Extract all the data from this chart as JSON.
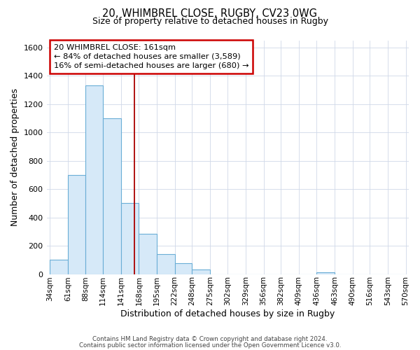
{
  "title_line1": "20, WHIMBREL CLOSE, RUGBY, CV23 0WG",
  "title_line2": "Size of property relative to detached houses in Rugby",
  "xlabel": "Distribution of detached houses by size in Rugby",
  "ylabel": "Number of detached properties",
  "bin_edges": [
    34,
    61,
    88,
    114,
    141,
    168,
    195,
    222,
    248,
    275,
    302,
    329,
    356,
    382,
    409,
    436,
    463,
    490,
    516,
    543,
    570
  ],
  "bar_heights": [
    100,
    700,
    1330,
    1100,
    500,
    285,
    140,
    75,
    30,
    0,
    0,
    0,
    0,
    0,
    0,
    15,
    0,
    0,
    0,
    0
  ],
  "tick_labels": [
    "34sqm",
    "61sqm",
    "88sqm",
    "114sqm",
    "141sqm",
    "168sqm",
    "195sqm",
    "222sqm",
    "248sqm",
    "275sqm",
    "302sqm",
    "329sqm",
    "356sqm",
    "382sqm",
    "409sqm",
    "436sqm",
    "463sqm",
    "490sqm",
    "516sqm",
    "543sqm",
    "570sqm"
  ],
  "bar_face_color": "#d6e9f8",
  "bar_edge_color": "#6aaed6",
  "grid_color": "#d0d8e8",
  "ref_line_x": 161,
  "ref_line_color": "#aa0000",
  "annotation_line1": "20 WHIMBREL CLOSE: 161sqm",
  "annotation_line2": "← 84% of detached houses are smaller (3,589)",
  "annotation_line3": "16% of semi-detached houses are larger (680) →",
  "ylim": [
    0,
    1650
  ],
  "footer_line1": "Contains HM Land Registry data © Crown copyright and database right 2024.",
  "footer_line2": "Contains public sector information licensed under the Open Government Licence v3.0.",
  "background_color": "#ffffff",
  "fig_width": 6.0,
  "fig_height": 5.0,
  "dpi": 100
}
